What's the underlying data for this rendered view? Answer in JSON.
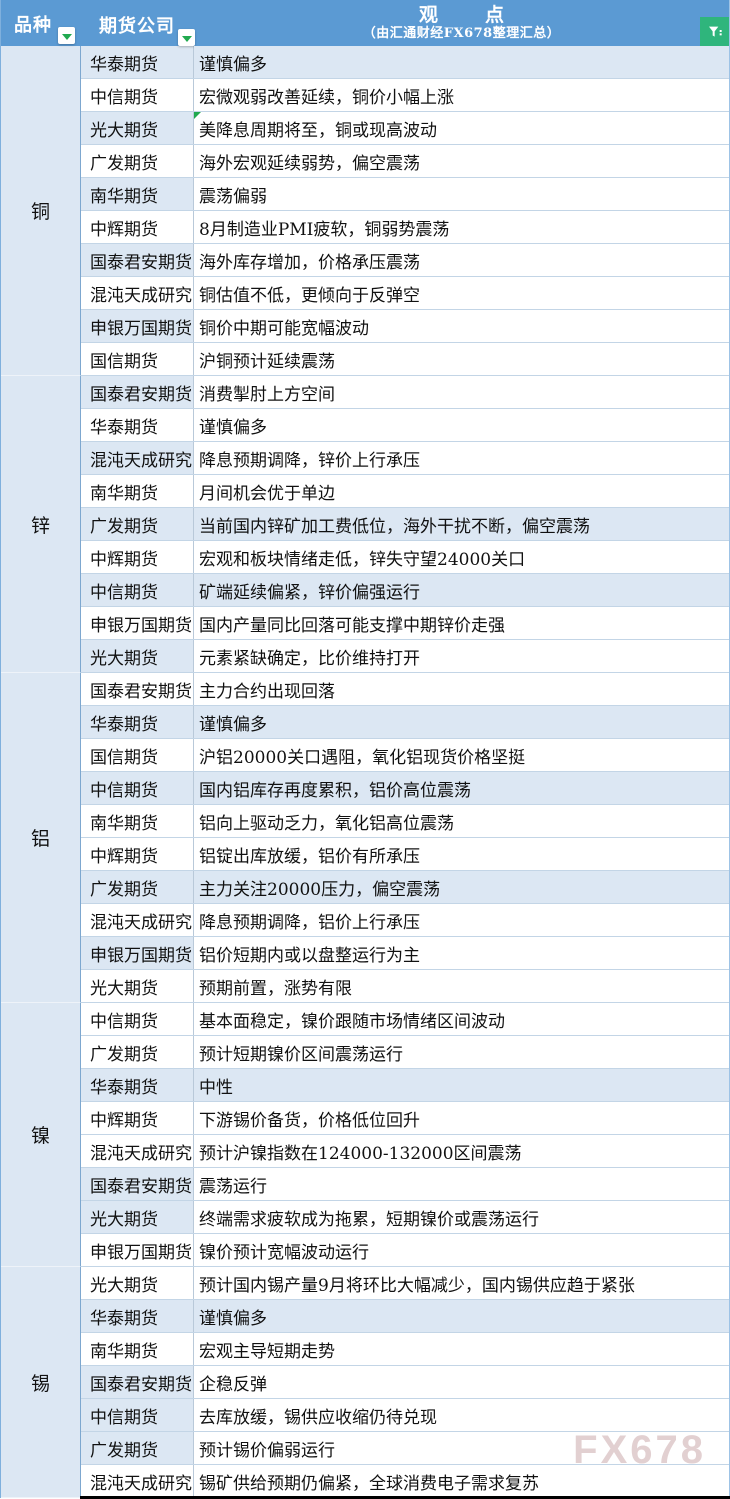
{
  "header": {
    "col_variety": "品种",
    "col_company": "期货公司",
    "col_view_title": "观　点",
    "col_view_subtitle": "（由汇通财经FX678整理汇总）",
    "filter_dropdown_icon": "triangle-down",
    "filter_funnel_icon": "funnel",
    "colors": {
      "header_bg": "#5b9ad3",
      "band_bg": "#dce7f3",
      "filter_arrow_green": "#21a94f",
      "funnel_bg": "#2fb57c"
    }
  },
  "watermark": "FX678",
  "sections": [
    {
      "key": "copper",
      "variety": "铜",
      "rows": [
        {
          "company": "华泰期货",
          "view": "谨慎偏多",
          "shade": "full"
        },
        {
          "company": "中信期货",
          "view": "宏微观弱改善延续，铜价小幅上涨",
          "shade": "none"
        },
        {
          "company": "光大期货",
          "view": "美降息周期将至，铜或现高波动",
          "shade": "company",
          "marker": true
        },
        {
          "company": "广发期货",
          "view": "海外宏观延续弱势，偏空震荡",
          "shade": "none"
        },
        {
          "company": "南华期货",
          "view": "震荡偏弱",
          "shade": "company"
        },
        {
          "company": "中辉期货",
          "view": "8月制造业PMI疲软，铜弱势震荡",
          "shade": "none"
        },
        {
          "company": "国泰君安期货",
          "view": "海外库存增加，价格承压震荡",
          "shade": "company"
        },
        {
          "company": "混沌天成研究",
          "view": "铜估值不低，更倾向于反弹空",
          "shade": "none"
        },
        {
          "company": "申银万国期货",
          "view": "铜价中期可能宽幅波动",
          "shade": "company"
        },
        {
          "company": "国信期货",
          "view": "沪铜预计延续震荡",
          "shade": "none"
        }
      ]
    },
    {
      "key": "zinc",
      "variety": "锌",
      "rows": [
        {
          "company": "国泰君安期货",
          "view": "消费掣肘上方空间",
          "shade": "company"
        },
        {
          "company": "华泰期货",
          "view": "谨慎偏多",
          "shade": "none"
        },
        {
          "company": "混沌天成研究",
          "view": "降息预期调降，锌价上行承压",
          "shade": "company"
        },
        {
          "company": "南华期货",
          "view": "月间机会优于单边",
          "shade": "none"
        },
        {
          "company": "广发期货",
          "view": "当前国内锌矿加工费低位，海外干扰不断，偏空震荡",
          "shade": "full"
        },
        {
          "company": "中辉期货",
          "view": "宏观和板块情绪走低，锌失守望24000关口",
          "shade": "none"
        },
        {
          "company": "中信期货",
          "view": "矿端延续偏紧，锌价偏强运行",
          "shade": "full"
        },
        {
          "company": "申银万国期货",
          "view": "国内产量同比回落可能支撑中期锌价走强",
          "shade": "none"
        },
        {
          "company": "光大期货",
          "view": "元素紧缺确定，比价维持打开",
          "shade": "company"
        }
      ]
    },
    {
      "key": "aluminum",
      "variety": "铝",
      "rows": [
        {
          "company": "国泰君安期货",
          "view": "主力合约出现回落",
          "shade": "none"
        },
        {
          "company": "华泰期货",
          "view": "谨慎偏多",
          "shade": "full"
        },
        {
          "company": "国信期货",
          "view": "沪铝20000关口遇阻，氧化铝现货价格坚挺",
          "shade": "none"
        },
        {
          "company": "中信期货",
          "view": "国内铝库存再度累积，铝价高位震荡",
          "shade": "full"
        },
        {
          "company": "南华期货",
          "view": "铝向上驱动乏力，氧化铝高位震荡",
          "shade": "none"
        },
        {
          "company": "中辉期货",
          "view": "铝锭出库放缓，铝价有所承压",
          "shade": "none"
        },
        {
          "company": "广发期货",
          "view": "主力关注20000压力，偏空震荡",
          "shade": "full"
        },
        {
          "company": "混沌天成研究",
          "view": "降息预期调降，铝价上行承压",
          "shade": "none"
        },
        {
          "company": "申银万国期货",
          "view": "铝价短期内或以盘整运行为主",
          "shade": "company"
        },
        {
          "company": "光大期货",
          "view": "预期前置，涨势有限",
          "shade": "none"
        }
      ]
    },
    {
      "key": "nickel",
      "variety": "镍",
      "rows": [
        {
          "company": "中信期货",
          "view": "基本面稳定，镍价跟随市场情绪区间波动",
          "shade": "none"
        },
        {
          "company": "广发期货",
          "view": "预计短期镍价区间震荡运行",
          "shade": "none"
        },
        {
          "company": "华泰期货",
          "view": "中性",
          "shade": "full"
        },
        {
          "company": "中辉期货",
          "view": "下游锡价备货，价格低位回升",
          "shade": "none"
        },
        {
          "company": "混沌天成研究",
          "view": "预计沪镍指数在124000-132000区间震荡",
          "shade": "none"
        },
        {
          "company": "国泰君安期货",
          "view": "震荡运行",
          "shade": "company"
        },
        {
          "company": "光大期货",
          "view": "终端需求疲软成为拖累，短期镍价或震荡运行",
          "shade": "company"
        },
        {
          "company": "申银万国期货",
          "view": "镍价预计宽幅波动运行",
          "shade": "none"
        }
      ]
    },
    {
      "key": "tin",
      "variety": "锡",
      "rows": [
        {
          "company": "光大期货",
          "view": "预计国内锡产量9月将环比大幅减少，国内锡供应趋于紧张",
          "shade": "none"
        },
        {
          "company": "华泰期货",
          "view": "谨慎偏多",
          "shade": "full"
        },
        {
          "company": "南华期货",
          "view": "宏观主导短期走势",
          "shade": "none"
        },
        {
          "company": "国泰君安期货",
          "view": "企稳反弹",
          "shade": "company"
        },
        {
          "company": "中信期货",
          "view": "去库放缓，锡供应收缩仍待兑现",
          "shade": "company"
        },
        {
          "company": "广发期货",
          "view": "预计锡价偏弱运行",
          "shade": "company"
        },
        {
          "company": "混沌天成研究",
          "view": "锡矿供给预期仍偏紧，全球消费电子需求复苏",
          "shade": "none"
        }
      ]
    }
  ]
}
